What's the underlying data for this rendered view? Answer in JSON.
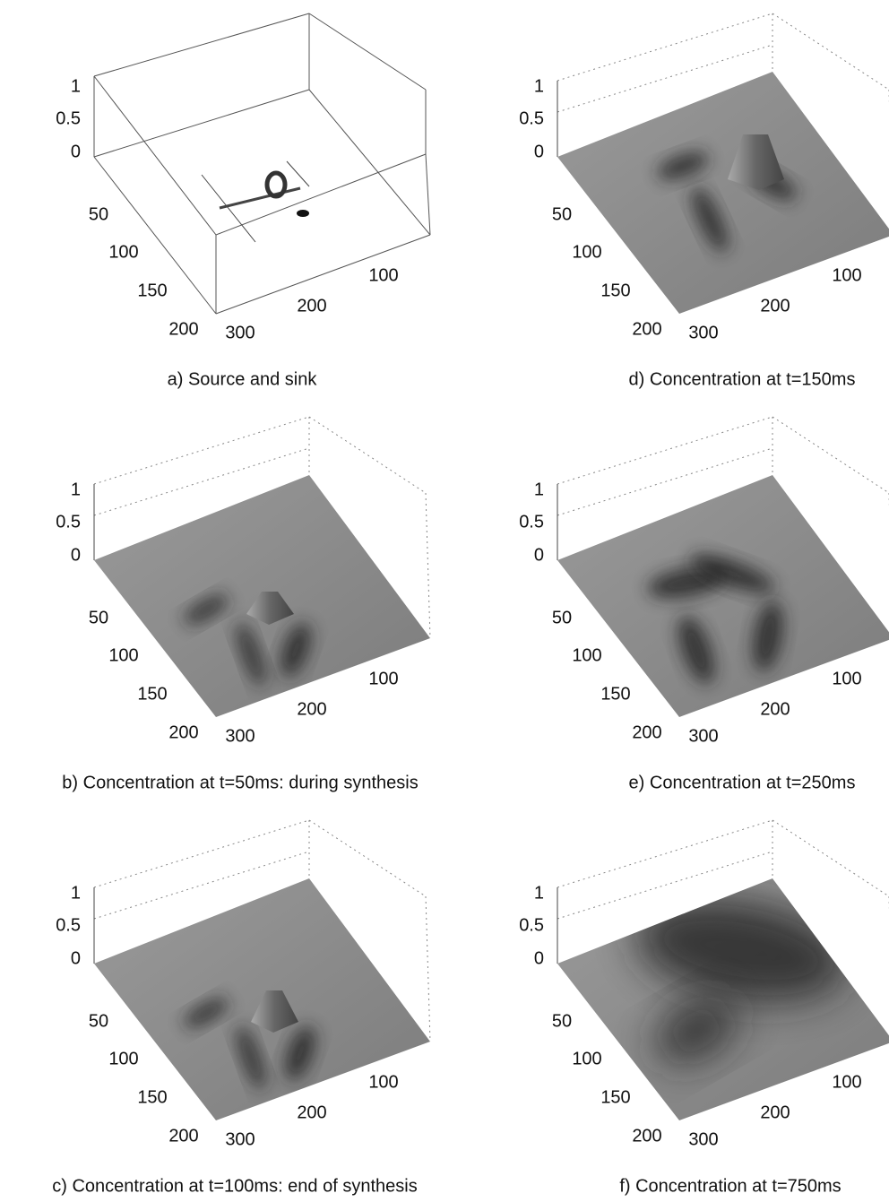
{
  "panels": [
    {
      "caption": "a) Source and sink",
      "z_ticks": [
        "1",
        "0.5",
        "0"
      ],
      "y_ticks": [
        "50",
        "100",
        "150",
        "200"
      ],
      "x_ticks": [
        "300",
        "200",
        "100"
      ]
    },
    {
      "caption": "b) Concentration at t=50ms: during synthesis",
      "z_ticks": [
        "1",
        "0.5",
        "0"
      ],
      "y_ticks": [
        "50",
        "100",
        "150",
        "200"
      ],
      "x_ticks": [
        "300",
        "200",
        "100"
      ]
    },
    {
      "caption": "c) Concentration at t=100ms: end of synthesis",
      "z_ticks": [
        "1",
        "0.5",
        "0"
      ],
      "y_ticks": [
        "50",
        "100",
        "150",
        "200"
      ],
      "x_ticks": [
        "300",
        "200",
        "100"
      ]
    },
    {
      "caption": "d) Concentration at t=150ms",
      "z_ticks": [
        "1",
        "0.5",
        "0"
      ],
      "y_ticks": [
        "50",
        "100",
        "150",
        "200"
      ],
      "x_ticks": [
        "300",
        "200",
        "100"
      ]
    },
    {
      "caption": "e) Concentration at t=250ms",
      "z_ticks": [
        "1",
        "0.5",
        "0"
      ],
      "y_ticks": [
        "50",
        "100",
        "150",
        "200"
      ],
      "x_ticks": [
        "300",
        "200",
        "100"
      ]
    },
    {
      "caption": "f) Concentration at t=750ms",
      "z_ticks": [
        "1",
        "0.5",
        "0"
      ],
      "y_ticks": [
        "50",
        "100",
        "150",
        "200"
      ],
      "x_ticks": [
        "300",
        "200",
        "100"
      ]
    }
  ]
}
